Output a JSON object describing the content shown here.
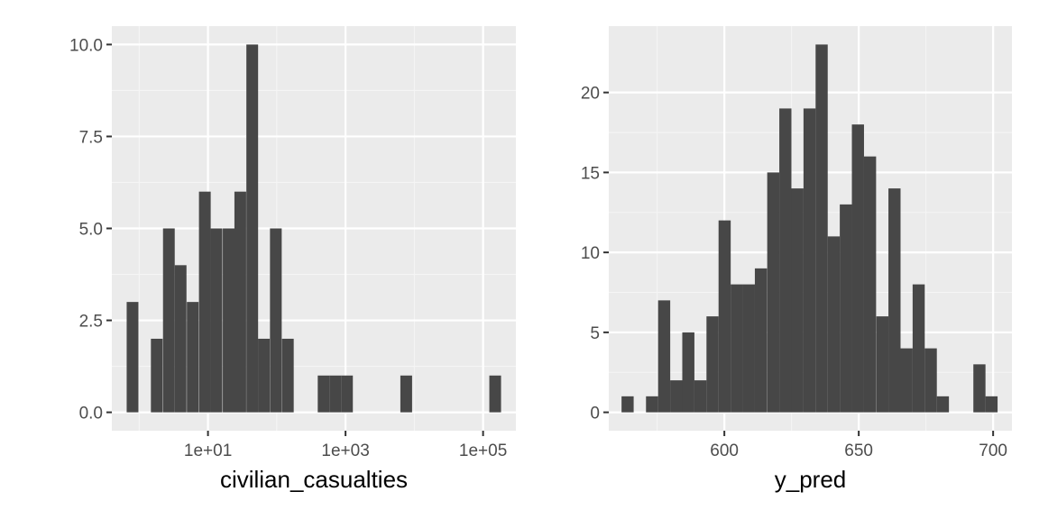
{
  "colors": {
    "panel_background": "#ebebeb",
    "grid_major": "#ffffff",
    "grid_minor": "#f5f5f5",
    "bar_fill": "#474747",
    "tick_text": "#4d4d4d",
    "tick_mark": "#333333",
    "title_text": "#000000"
  },
  "chart_data": [
    {
      "type": "bar",
      "subtype": "histogram",
      "xscale": "log10",
      "xlabel": "civilian_casualties",
      "ylabel": "",
      "xlim": [
        0.4,
        300000
      ],
      "ylim": [
        -0.5,
        10.5
      ],
      "x_ticks": [
        10,
        1000,
        100000
      ],
      "x_tick_labels": [
        "1e+01",
        "1e+03",
        "1e+05"
      ],
      "y_ticks": [
        0,
        2.5,
        5,
        7.5,
        10
      ],
      "y_tick_labels": [
        "0.0",
        "2.5",
        "5.0",
        "7.5",
        "10.0"
      ],
      "grid": true,
      "bin_width_log10": 0.1705,
      "bins": [
        {
          "x": 0.8,
          "count": 3
        },
        {
          "x": 1.21,
          "count": 0
        },
        {
          "x": 1.8,
          "count": 2
        },
        {
          "x": 2.7,
          "count": 5
        },
        {
          "x": 4.0,
          "count": 4
        },
        {
          "x": 6.0,
          "count": 3
        },
        {
          "x": 9.0,
          "count": 6
        },
        {
          "x": 13.3,
          "count": 5
        },
        {
          "x": 20,
          "count": 5
        },
        {
          "x": 29.5,
          "count": 6
        },
        {
          "x": 44,
          "count": 10
        },
        {
          "x": 65,
          "count": 2
        },
        {
          "x": 97,
          "count": 5
        },
        {
          "x": 145,
          "count": 2
        },
        {
          "x": 215,
          "count": 0
        },
        {
          "x": 320,
          "count": 0
        },
        {
          "x": 480,
          "count": 1
        },
        {
          "x": 710,
          "count": 1
        },
        {
          "x": 1050,
          "count": 1
        },
        {
          "x": 1560,
          "count": 0
        },
        {
          "x": 2320,
          "count": 0
        },
        {
          "x": 3450,
          "count": 0
        },
        {
          "x": 5130,
          "count": 0
        },
        {
          "x": 7630,
          "count": 1
        },
        {
          "x": 11350,
          "count": 0
        },
        {
          "x": 16880,
          "count": 0
        },
        {
          "x": 25100,
          "count": 0
        },
        {
          "x": 37300,
          "count": 0
        },
        {
          "x": 55500,
          "count": 0
        },
        {
          "x": 82500,
          "count": 0
        },
        {
          "x": 150000,
          "count": 1
        }
      ]
    },
    {
      "type": "bar",
      "subtype": "histogram",
      "xscale": "linear",
      "xlabel": "y_pred",
      "ylabel": "",
      "xlim": [
        557,
        707
      ],
      "ylim": [
        -1.15,
        24.15
      ],
      "x_ticks": [
        600,
        650,
        700
      ],
      "x_tick_labels": [
        "600",
        "650",
        "700"
      ],
      "y_ticks": [
        0,
        5,
        10,
        15,
        20
      ],
      "y_tick_labels": [
        "0",
        "5",
        "10",
        "15",
        "20"
      ],
      "grid": true,
      "bin_width": 4.51,
      "bins": [
        {
          "x": 564,
          "count": 1
        },
        {
          "x": 568.5,
          "count": 0
        },
        {
          "x": 573.1,
          "count": 1
        },
        {
          "x": 577.6,
          "count": 7
        },
        {
          "x": 582.1,
          "count": 2
        },
        {
          "x": 586.6,
          "count": 5
        },
        {
          "x": 591.1,
          "count": 2
        },
        {
          "x": 595.6,
          "count": 6
        },
        {
          "x": 600.1,
          "count": 12
        },
        {
          "x": 604.6,
          "count": 8
        },
        {
          "x": 609.1,
          "count": 8
        },
        {
          "x": 613.6,
          "count": 9
        },
        {
          "x": 618.2,
          "count": 15
        },
        {
          "x": 622.7,
          "count": 19
        },
        {
          "x": 627.2,
          "count": 14
        },
        {
          "x": 631.7,
          "count": 19
        },
        {
          "x": 636.2,
          "count": 23
        },
        {
          "x": 640.7,
          "count": 11
        },
        {
          "x": 645.2,
          "count": 13
        },
        {
          "x": 649.7,
          "count": 18
        },
        {
          "x": 654.2,
          "count": 16
        },
        {
          "x": 658.8,
          "count": 6
        },
        {
          "x": 663.3,
          "count": 14
        },
        {
          "x": 667.8,
          "count": 4
        },
        {
          "x": 672.3,
          "count": 8
        },
        {
          "x": 676.8,
          "count": 4
        },
        {
          "x": 681.3,
          "count": 1
        },
        {
          "x": 685.8,
          "count": 0
        },
        {
          "x": 690.3,
          "count": 0
        },
        {
          "x": 694.9,
          "count": 3
        },
        {
          "x": 699.4,
          "count": 1
        }
      ]
    }
  ]
}
